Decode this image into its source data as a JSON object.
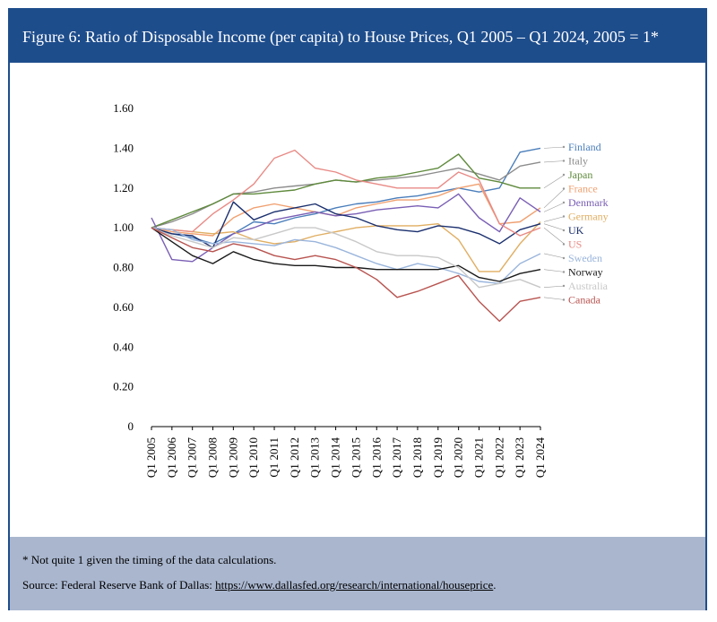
{
  "header": {
    "title": "Figure 6: Ratio of Disposable Income (per capita) to House Prices, Q1 2005 – Q1 2024, 2005 = 1*"
  },
  "footer": {
    "note": "* Not quite 1 given the timing of the data calculations.",
    "source_prefix": "Source: Federal Reserve Bank of Dallas: ",
    "source_link": "https://www.dallasfed.org/research/international/houseprice",
    "source_suffix": "."
  },
  "colors": {
    "header_bg": "#1e4d8c",
    "footer_bg": "#a9b6ce"
  },
  "chart_data": {
    "type": "line",
    "title": "",
    "xlabel": "",
    "ylabel": "",
    "x": [
      2005,
      2006,
      2007,
      2008,
      2009,
      2010,
      2011,
      2012,
      2013,
      2014,
      2015,
      2016,
      2017,
      2018,
      2019,
      2020,
      2021,
      2022,
      2023,
      2024
    ],
    "x_tick_labels": [
      "Q1 2005",
      "Q1 2006",
      "Q1 2007",
      "Q1 2008",
      "Q1 2009",
      "Q1 2010",
      "Q1 2011",
      "Q1 2012",
      "Q1 2013",
      "Q1 2014",
      "Q1 2015",
      "Q1 2016",
      "Q1 2017",
      "Q1 2018",
      "Q1 2019",
      "Q1 2020",
      "Q1 2021",
      "Q1 2022",
      "Q1 2023",
      "Q1 2024"
    ],
    "y_ticks": [
      0,
      0.2,
      0.4,
      0.6,
      0.8,
      1.0,
      1.2,
      1.4,
      1.6
    ],
    "y_tick_labels": [
      "0",
      "0.20",
      "0.40",
      "0.60",
      "0.80",
      "1.00",
      "1.20",
      "1.40",
      "1.60"
    ],
    "ylim": [
      0,
      1.6
    ],
    "grid": false,
    "legend": "right, labels at line ends",
    "series": [
      {
        "name": "Finland",
        "color": "#4a7ebb",
        "values": [
          1.0,
          0.97,
          0.95,
          0.92,
          0.97,
          1.03,
          1.02,
          1.05,
          1.07,
          1.1,
          1.12,
          1.13,
          1.15,
          1.16,
          1.18,
          1.2,
          1.18,
          1.2,
          1.38,
          1.4
        ]
      },
      {
        "name": "Italy",
        "color": "#8c8c8c",
        "values": [
          1.0,
          1.03,
          1.07,
          1.12,
          1.17,
          1.18,
          1.2,
          1.21,
          1.22,
          1.24,
          1.23,
          1.24,
          1.25,
          1.26,
          1.28,
          1.3,
          1.27,
          1.24,
          1.31,
          1.33
        ]
      },
      {
        "name": "Japan",
        "color": "#5f8a3c",
        "values": [
          1.0,
          1.04,
          1.08,
          1.12,
          1.17,
          1.17,
          1.18,
          1.19,
          1.22,
          1.24,
          1.23,
          1.25,
          1.26,
          1.28,
          1.3,
          1.37,
          1.25,
          1.23,
          1.2,
          1.2
        ]
      },
      {
        "name": "France",
        "color": "#f0a070",
        "values": [
          1.0,
          0.98,
          0.97,
          0.96,
          1.05,
          1.1,
          1.12,
          1.1,
          1.08,
          1.06,
          1.1,
          1.12,
          1.14,
          1.14,
          1.16,
          1.2,
          1.22,
          1.02,
          1.03,
          1.1
        ]
      },
      {
        "name": "Denmark",
        "color": "#7a5fb5",
        "values": [
          1.05,
          0.84,
          0.83,
          0.9,
          0.97,
          1.0,
          1.04,
          1.06,
          1.08,
          1.06,
          1.07,
          1.09,
          1.1,
          1.11,
          1.1,
          1.17,
          1.05,
          0.98,
          1.15,
          1.08
        ]
      },
      {
        "name": "Germany",
        "color": "#e0ae62",
        "values": [
          1.0,
          0.99,
          0.98,
          0.97,
          0.98,
          0.94,
          0.92,
          0.93,
          0.96,
          0.98,
          1.0,
          1.01,
          1.01,
          1.01,
          1.02,
          0.94,
          0.78,
          0.78,
          0.92,
          1.03
        ]
      },
      {
        "name": "UK",
        "color": "#1a2f6e",
        "values": [
          1.0,
          0.97,
          0.96,
          0.9,
          1.13,
          1.04,
          1.08,
          1.1,
          1.12,
          1.07,
          1.05,
          1.01,
          0.99,
          0.98,
          1.01,
          1.0,
          0.97,
          0.92,
          0.99,
          1.02
        ]
      },
      {
        "name": "US",
        "color": "#e88a85",
        "values": [
          1.0,
          0.99,
          0.98,
          1.07,
          1.14,
          1.22,
          1.35,
          1.39,
          1.3,
          1.28,
          1.24,
          1.22,
          1.2,
          1.2,
          1.2,
          1.28,
          1.24,
          1.02,
          0.96,
          1.0
        ]
      },
      {
        "name": "Sweden",
        "color": "#9ab5dc",
        "values": [
          1.0,
          0.99,
          0.94,
          0.92,
          0.93,
          0.92,
          0.91,
          0.94,
          0.93,
          0.9,
          0.86,
          0.82,
          0.79,
          0.82,
          0.8,
          0.77,
          0.73,
          0.72,
          0.82,
          0.87
        ]
      },
      {
        "name": "Norway",
        "color": "#1a1a1a",
        "values": [
          1.0,
          0.93,
          0.86,
          0.82,
          0.88,
          0.84,
          0.82,
          0.81,
          0.81,
          0.8,
          0.8,
          0.79,
          0.79,
          0.79,
          0.79,
          0.81,
          0.75,
          0.73,
          0.77,
          0.79
        ]
      },
      {
        "name": "Australia",
        "color": "#c8c8c8",
        "values": [
          1.0,
          0.96,
          0.93,
          0.9,
          0.95,
          0.94,
          0.97,
          1.0,
          1.0,
          0.97,
          0.93,
          0.88,
          0.86,
          0.86,
          0.85,
          0.8,
          0.7,
          0.72,
          0.74,
          0.7
        ]
      },
      {
        "name": "Canada",
        "color": "#b85450",
        "values": [
          1.0,
          0.95,
          0.9,
          0.88,
          0.92,
          0.9,
          0.86,
          0.84,
          0.86,
          0.84,
          0.8,
          0.74,
          0.65,
          0.68,
          0.72,
          0.76,
          0.63,
          0.53,
          0.63,
          0.65
        ]
      }
    ]
  }
}
